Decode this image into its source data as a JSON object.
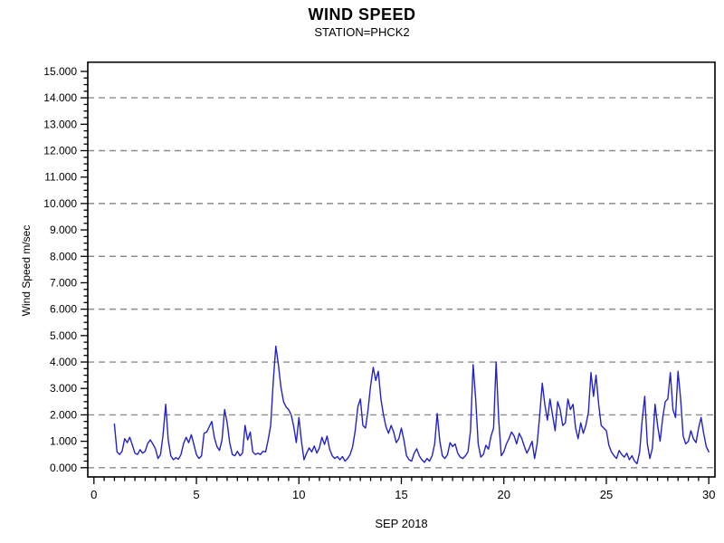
{
  "header": {
    "title": "WIND SPEED",
    "subtitle": "STATION=PHCK2"
  },
  "axes": {
    "x": {
      "label": "SEP 2018"
    },
    "y": {
      "label": "Wind Speed m/sec"
    }
  },
  "chart_data": {
    "type": "line",
    "title": "WIND SPEED",
    "subtitle": "STATION=PHCK2",
    "xlabel": "SEP 2018",
    "ylabel": "Wind Speed m/sec",
    "legend": "none",
    "grid": "dashed horizontal lines at even y values",
    "grid_values": [
      0,
      2,
      4,
      6,
      8,
      10,
      12,
      14
    ],
    "grid_color": "#8c8c8c",
    "line_color": "#2222cc",
    "frame_color": "#000000",
    "xlim": [
      -0.3,
      30.3
    ],
    "ylim": [
      -0.35,
      15.35
    ],
    "x_ticks_major": [
      0,
      5,
      10,
      15,
      20,
      25,
      30
    ],
    "x_tick_labels": [
      "0",
      "5",
      "10",
      "15",
      "20",
      "25",
      "30"
    ],
    "x_minor_step": 0.5,
    "y_ticks_major": [
      0,
      1,
      2,
      3,
      4,
      5,
      6,
      7,
      8,
      9,
      10,
      11,
      12,
      13,
      14,
      15
    ],
    "y_tick_labels": [
      "0.000",
      "1.000",
      "2.000",
      "3.000",
      "4.000",
      "5.000",
      "6.000",
      "7.000",
      "8.000",
      "9.000",
      "10.000",
      "11.000",
      "12.000",
      "13.000",
      "14.000",
      "15.000"
    ],
    "y_minor_step": 0.25,
    "x_start": 1,
    "x_step": 0.125,
    "x_units": "day of month",
    "values": [
      1.65,
      0.6,
      0.5,
      0.62,
      1.1,
      0.95,
      1.15,
      0.85,
      0.55,
      0.5,
      0.68,
      0.55,
      0.62,
      0.92,
      1.05,
      0.9,
      0.72,
      0.35,
      0.5,
      1.25,
      2.4,
      1.05,
      0.45,
      0.3,
      0.38,
      0.32,
      0.5,
      0.92,
      1.15,
      0.95,
      1.25,
      0.88,
      0.5,
      0.35,
      0.45,
      1.3,
      1.35,
      1.55,
      1.75,
      1.15,
      0.8,
      0.65,
      1.05,
      2.2,
      1.7,
      0.95,
      0.5,
      0.45,
      0.62,
      0.45,
      0.55,
      1.6,
      1.05,
      1.35,
      0.6,
      0.5,
      0.55,
      0.5,
      0.62,
      0.6,
      1.05,
      1.6,
      3.3,
      4.6,
      3.9,
      3.05,
      2.5,
      2.3,
      2.2,
      2.0,
      1.55,
      0.95,
      1.9,
      1.0,
      0.3,
      0.55,
      0.75,
      0.6,
      0.82,
      0.55,
      0.75,
      1.15,
      0.88,
      1.2,
      0.7,
      0.45,
      0.35,
      0.42,
      0.3,
      0.42,
      0.25,
      0.35,
      0.5,
      0.8,
      1.4,
      2.3,
      2.6,
      1.6,
      1.5,
      2.2,
      3.1,
      3.8,
      3.3,
      3.65,
      2.6,
      2.0,
      1.55,
      1.3,
      1.6,
      1.35,
      0.95,
      1.1,
      1.5,
      1.05,
      0.45,
      0.3,
      0.25,
      0.55,
      0.72,
      0.45,
      0.3,
      0.2,
      0.35,
      0.25,
      0.45,
      0.9,
      2.05,
      1.0,
      0.45,
      0.35,
      0.5,
      0.95,
      0.8,
      0.9,
      0.55,
      0.4,
      0.35,
      0.45,
      0.6,
      1.4,
      3.9,
      2.6,
      0.9,
      0.4,
      0.5,
      0.85,
      0.7,
      1.2,
      1.5,
      4.0,
      1.8,
      0.45,
      0.6,
      0.9,
      1.1,
      1.35,
      1.2,
      0.9,
      1.3,
      1.1,
      0.8,
      0.55,
      0.75,
      1.0,
      0.35,
      0.9,
      2.0,
      3.2,
      2.4,
      1.8,
      2.6,
      2.0,
      1.4,
      2.5,
      2.2,
      1.6,
      1.7,
      2.6,
      2.2,
      2.4,
      1.5,
      1.1,
      1.7,
      1.3,
      1.6,
      2.1,
      3.6,
      2.7,
      3.5,
      2.4,
      1.6,
      1.5,
      1.4,
      0.85,
      0.6,
      0.45,
      0.35,
      0.65,
      0.5,
      0.4,
      0.55,
      0.3,
      0.45,
      0.25,
      0.15,
      0.6,
      1.8,
      2.7,
      0.9,
      0.35,
      0.75,
      2.4,
      1.6,
      1.0,
      1.9,
      2.5,
      2.6,
      3.6,
      2.2,
      1.9,
      3.65,
      2.6,
      1.2,
      0.9,
      1.0,
      1.4,
      1.1,
      0.95,
      1.5,
      1.9,
      1.3,
      0.8,
      0.6
    ]
  }
}
